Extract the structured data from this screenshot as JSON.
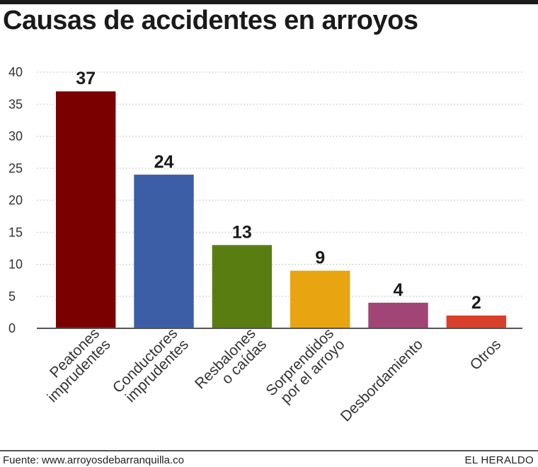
{
  "chart_data": {
    "type": "bar",
    "title": "Causas de accidentes en arroyos",
    "categories": [
      [
        "Peatones",
        "imprudentes"
      ],
      [
        "Conductores",
        "imprudentes"
      ],
      [
        "Resbalones",
        "o caídas"
      ],
      [
        "Sorprendidos",
        "por el arroyo"
      ],
      [
        "Desbordamiento"
      ],
      [
        "Otros"
      ]
    ],
    "values": [
      37,
      24,
      13,
      9,
      4,
      2
    ],
    "colors": [
      "#7a0000",
      "#3b5ea6",
      "#5a7d12",
      "#e8a411",
      "#a04575",
      "#d9402b"
    ],
    "ylim": [
      0,
      40
    ],
    "yticks": [
      0,
      5,
      10,
      15,
      20,
      25,
      30,
      35,
      40
    ],
    "grid": true,
    "data_labels": true
  },
  "footer": {
    "source": "Fuente: www.arroyosdebarranquilla.co",
    "brand": "EL HERALDO"
  }
}
